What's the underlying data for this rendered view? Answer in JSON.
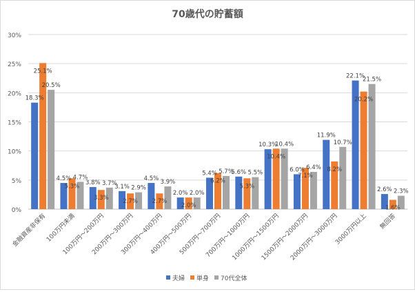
{
  "chart_data": {
    "type": "bar",
    "title": "70歳代の貯蓄額",
    "xlabel": "",
    "ylabel": "",
    "ylim": [
      0,
      30
    ],
    "yticks": [
      "0%",
      "5%",
      "10%",
      "15%",
      "20%",
      "25%",
      "30%"
    ],
    "grid": true,
    "legend": "bottom",
    "categories": [
      "金融資産非保有",
      "100万円未満",
      "100万円～200万円",
      "200万円～300万円",
      "300万円～400万円",
      "400万円～500万円",
      "500万円～700万円",
      "700万円～1000万円",
      "1000万円～1500万円",
      "1500万円～2000万円",
      "2000万円～3000万円",
      "3000万円以上",
      "無回答"
    ],
    "series": [
      {
        "name": "夫婦",
        "color": "#4472c4",
        "values": [
          18.3,
          4.5,
          3.8,
          3.1,
          4.5,
          2.0,
          5.4,
          5.6,
          10.3,
          6.0,
          11.9,
          22.1,
          2.6
        ]
      },
      {
        "name": "単身",
        "color": "#ed7d31",
        "values": [
          25.1,
          5.3,
          3.3,
          2.7,
          2.7,
          2.0,
          6.2,
          5.3,
          10.4,
          7.1,
          8.2,
          20.2,
          1.6
        ]
      },
      {
        "name": "70代全体",
        "color": "#a5a5a5",
        "values": [
          20.5,
          4.7,
          3.7,
          2.9,
          3.9,
          2.0,
          5.7,
          5.5,
          10.4,
          6.4,
          10.7,
          21.5,
          2.3
        ]
      }
    ]
  }
}
